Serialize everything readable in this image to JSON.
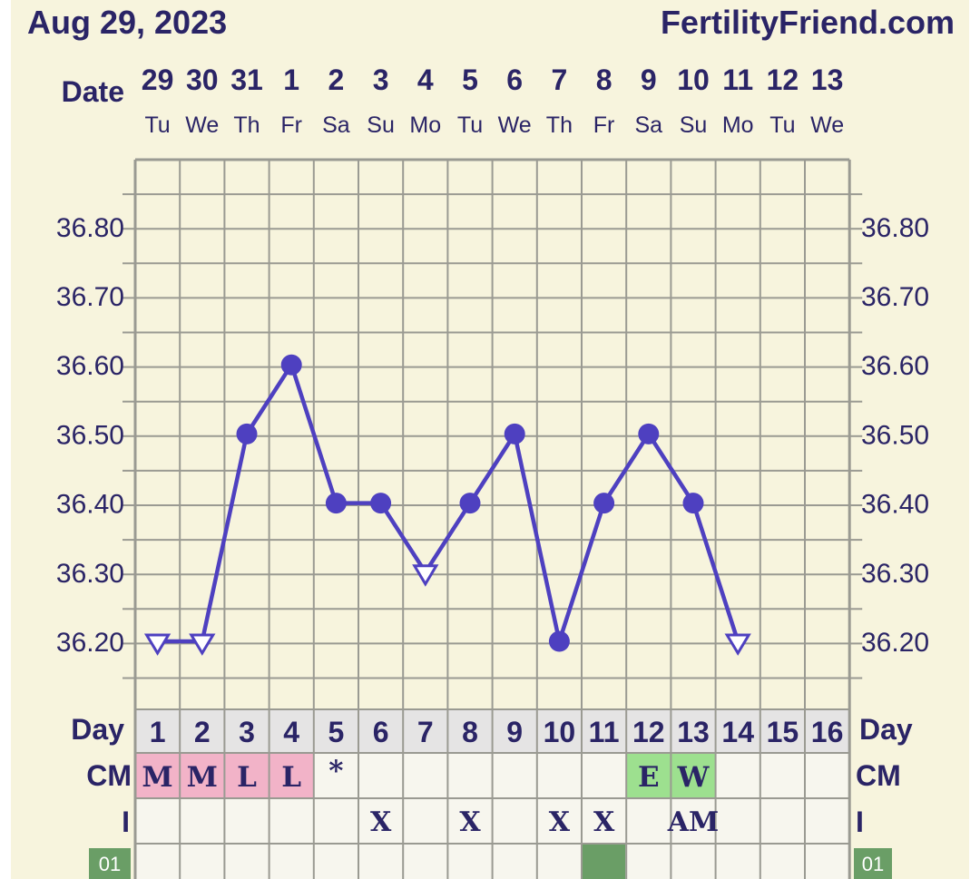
{
  "header": {
    "date_label": "Aug 29, 2023",
    "site": "FertilityFriend.com"
  },
  "colors": {
    "background": "#f7f4dd",
    "grid": "#9a9a92",
    "line": "#4e40c0",
    "text": "#2a2466",
    "cm_pink": "#f2b3c8",
    "cm_green": "#9de08f",
    "day_row": "#e5e4e4",
    "row_cell": "#f7f6ee",
    "cd_badge": "#6a9e66"
  },
  "chart_data": {
    "type": "line",
    "row_label_date": "Date",
    "row_label_day": "Day",
    "row_label_cm": "CM",
    "row_label_i": "I",
    "cd_badge": "01",
    "dates": [
      "29",
      "30",
      "31",
      "1",
      "2",
      "3",
      "4",
      "5",
      "6",
      "7",
      "8",
      "9",
      "10",
      "11",
      "12",
      "13"
    ],
    "weekdays": [
      "Tu",
      "We",
      "Th",
      "Fr",
      "Sa",
      "Su",
      "Mo",
      "Tu",
      "We",
      "Th",
      "Fr",
      "Sa",
      "Su",
      "Mo",
      "Tu",
      "We"
    ],
    "days": [
      "1",
      "2",
      "3",
      "4",
      "5",
      "6",
      "7",
      "8",
      "9",
      "10",
      "11",
      "12",
      "13",
      "14",
      "15",
      "16"
    ],
    "y_ticks": [
      "36.80",
      "36.70",
      "36.60",
      "36.50",
      "36.40",
      "36.30",
      "36.20"
    ],
    "ylim": [
      36.09,
      36.89
    ],
    "temps": [
      36.2,
      36.2,
      36.5,
      36.6,
      36.4,
      36.4,
      36.3,
      36.4,
      36.5,
      36.2,
      36.4,
      36.5,
      36.4,
      36.2,
      null,
      null
    ],
    "marker": [
      "open",
      "open",
      "dot",
      "dot",
      "dot",
      "dot",
      "open",
      "dot",
      "dot",
      "dot",
      "dot",
      "dot",
      "dot",
      "open",
      null,
      null
    ],
    "cm": [
      "M",
      "M",
      "L",
      "L",
      "*",
      "",
      "",
      "",
      "",
      "",
      "",
      "E",
      "W",
      "",
      "",
      ""
    ],
    "cm_color": [
      "pink",
      "pink",
      "pink",
      "pink",
      "",
      "",
      "",
      "",
      "",
      "",
      "",
      "green",
      "green",
      "",
      "",
      ""
    ],
    "intercourse": [
      "",
      "",
      "",
      "",
      "",
      "X",
      "",
      "X",
      "",
      "X",
      "X",
      "",
      "AM",
      "",
      "",
      ""
    ],
    "cd_marker_day": 11
  }
}
